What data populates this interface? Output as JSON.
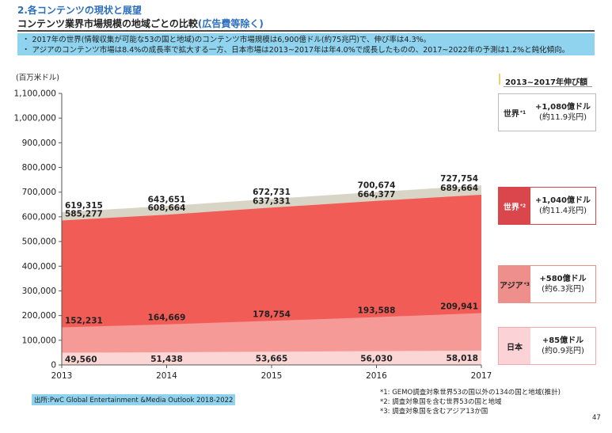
{
  "header": {
    "section_title": "2.各コンテンツの現状と展望",
    "title_main": "コンテンツ業界市場規模の地域ごとの比較",
    "title_paren": "(広告費等除く)"
  },
  "bullets": [
    "・ 2017年の世界(情報収集が可能な53の国と地域)のコンテンツ市場規模は6,900億ドル(約75兆円)で、伸び率は4.3%。",
    "・ アジアのコンテンツ市場は8.4%の成長率で拡大する一方、日本市場は2013~2017年は年4.0%で成長したものの、2017~2022年の予測は1.2%と鈍化傾向。"
  ],
  "chart_data": {
    "type": "area",
    "ylabel": "(百万米ドル)",
    "ylim": [
      0,
      1100000
    ],
    "ytick_step": 100000,
    "ytick_labels": [
      "0",
      "100,000",
      "200,000",
      "300,000",
      "400,000",
      "500,000",
      "600,000",
      "700,000",
      "800,000",
      "900,000",
      "1,000,000",
      "1,100,000"
    ],
    "x": [
      "2013",
      "2014",
      "2015",
      "2016",
      "2017"
    ],
    "grid": false,
    "series": [
      {
        "key": "japan",
        "values": [
          49560,
          51438,
          53665,
          56030,
          58018
        ],
        "labels": [
          "49,560",
          "51,438",
          "53,665",
          "56,030",
          "58,018"
        ],
        "color": "#fcd5d5"
      },
      {
        "key": "asia",
        "values": [
          152231,
          164669,
          178754,
          193588,
          209941
        ],
        "labels": [
          "152,231",
          "164,669",
          "178,754",
          "193,588",
          "209,941"
        ],
        "color": "#f59a97"
      },
      {
        "key": "world2",
        "values": [
          585277,
          608664,
          637331,
          664377,
          689664
        ],
        "labels": [
          "585,277",
          "608,664",
          "637,331",
          "664,377",
          "689,664"
        ],
        "color": "#f25c57"
      },
      {
        "key": "world1",
        "values": [
          619315,
          643651,
          672731,
          700674,
          727754
        ],
        "labels": [
          "619,315",
          "643,651",
          "672,731",
          "700,674",
          "727,754"
        ],
        "color": "#d8d4c6"
      }
    ]
  },
  "growth_panel": {
    "title": "2013~2017年伸び額",
    "rows": [
      {
        "label": "世界",
        "sup": "*1",
        "main": "+1,080億ドル",
        "sub": "(約11.9兆円)",
        "bg": "#ffffff",
        "fg": "#222222",
        "border": "#bbbbbb"
      },
      {
        "label": "世界",
        "sup": "*2",
        "main": "+1,040億ドル",
        "sub": "(約11.4兆円)",
        "bg": "#d9474c",
        "fg": "#ffffff",
        "border": "#d9474c"
      },
      {
        "label": "アジア",
        "sup": "*3",
        "main": "+580億ドル",
        "sub": "(約6.3兆円)",
        "bg": "#ee8f8c",
        "fg": "#222222",
        "border": "#ee8f8c"
      },
      {
        "label": "日本",
        "sup": "",
        "main": "+85億ドル",
        "sub": "(約0.9兆円)",
        "bg": "#fbd3d6",
        "fg": "#222222",
        "border": "#f3a8b0"
      }
    ]
  },
  "source": "出所:PwC Global Entertainment &Media Outlook 2018-2022",
  "notes": [
    "*1: GEMO調査対象世界53の国以外の134の国と地域(推計)",
    "*2: 調査対象国を含む世界53の国と地域",
    "*3: 調査対象国を含むアジア13か国"
  ],
  "page_number": "47"
}
